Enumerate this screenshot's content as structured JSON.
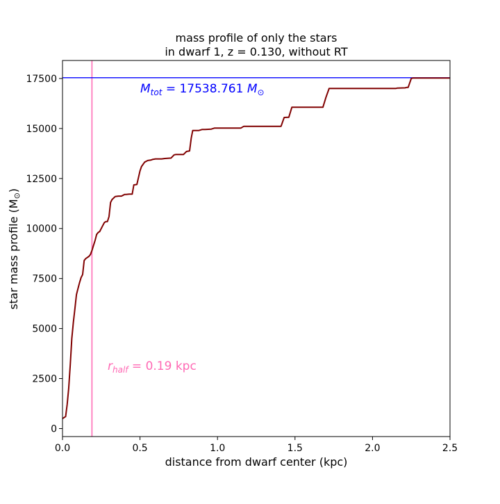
{
  "chart_data": {
    "type": "line",
    "title_line1": "mass profile of only the stars",
    "title_line2": "in dwarf 1, z = 0.130, without RT",
    "xlabel": "distance from dwarf center (kpc)",
    "ylabel_main": "star mass profile (M",
    "ylabel_sub": "⊙",
    "ylabel_close": ")",
    "xlim": [
      0.0,
      2.5
    ],
    "ylim": [
      -400,
      18400
    ],
    "xticks": [
      0.0,
      0.5,
      1.0,
      1.5,
      2.0,
      2.5
    ],
    "xtick_labels": [
      "0.0",
      "0.5",
      "1.0",
      "1.5",
      "2.0",
      "2.5"
    ],
    "yticks": [
      0,
      2500,
      5000,
      7500,
      10000,
      12500,
      15000,
      17500
    ],
    "ytick_labels": [
      "0",
      "2500",
      "5000",
      "7500",
      "10000",
      "12500",
      "15000",
      "17500"
    ],
    "grid": false,
    "colors": {
      "series": "#800000",
      "mtot_line": "#0000ff",
      "rhalf_line": "#ff69b4"
    },
    "hline": {
      "y": 17538.761
    },
    "vline": {
      "x": 0.19
    },
    "annotations": {
      "mtot": {
        "symbol": "M",
        "subscript": "tot",
        "text": " = 17538.761 ",
        "unit": "M",
        "unit_sub": "⊙"
      },
      "rhalf": {
        "symbol": "r",
        "subscript": "half",
        "text": " = 0.19 kpc"
      }
    },
    "series": [
      {
        "x": [
          0.0,
          0.02,
          0.03,
          0.04,
          0.05,
          0.06,
          0.07,
          0.08,
          0.09,
          0.1,
          0.11,
          0.12,
          0.13,
          0.14,
          0.15,
          0.16,
          0.17,
          0.18,
          0.19,
          0.2,
          0.21,
          0.22,
          0.23,
          0.24,
          0.25,
          0.26,
          0.27,
          0.28,
          0.29,
          0.3,
          0.31,
          0.32,
          0.34,
          0.36,
          0.38,
          0.4,
          0.41,
          0.43,
          0.45,
          0.46,
          0.48,
          0.5,
          0.51,
          0.53,
          0.55,
          0.57,
          0.58,
          0.6,
          0.61,
          0.64,
          0.66,
          0.7,
          0.72,
          0.73,
          0.75,
          0.78,
          0.8,
          0.82,
          0.83,
          0.84,
          0.86,
          0.88,
          0.9,
          0.92,
          0.94,
          0.96,
          0.98,
          1.0,
          1.02,
          1.15,
          1.17,
          1.2,
          1.41,
          1.43,
          1.45,
          1.46,
          1.48,
          1.5,
          1.68,
          1.7,
          1.72,
          2.15,
          2.16,
          2.21,
          2.22,
          2.23,
          2.25,
          2.26,
          2.5
        ],
        "y": [
          500,
          600,
          1200,
          2000,
          3200,
          4500,
          5300,
          6000,
          6700,
          7000,
          7300,
          7550,
          7700,
          8400,
          8500,
          8550,
          8600,
          8700,
          8900,
          9150,
          9400,
          9700,
          9800,
          9850,
          10000,
          10150,
          10300,
          10350,
          10350,
          10600,
          11300,
          11450,
          11600,
          11620,
          11620,
          11700,
          11700,
          11720,
          11720,
          12180,
          12200,
          12880,
          13100,
          13320,
          13400,
          13420,
          13450,
          13480,
          13480,
          13480,
          13500,
          13520,
          13680,
          13700,
          13700,
          13700,
          13850,
          13880,
          14500,
          14900,
          14900,
          14900,
          14950,
          14950,
          14960,
          14970,
          15020,
          15020,
          15020,
          15020,
          15110,
          15110,
          15110,
          15550,
          15560,
          15560,
          16060,
          16060,
          16060,
          16560,
          17000,
          17000,
          17020,
          17030,
          17050,
          17050,
          17500,
          17520,
          17520
        ]
      }
    ]
  }
}
